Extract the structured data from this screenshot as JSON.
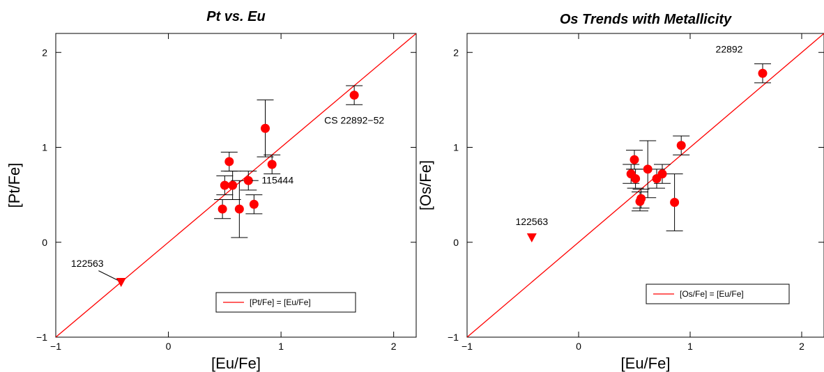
{
  "colors": {
    "marker": "#ff0000",
    "line": "#ff0000",
    "axis": "#000000",
    "errorbar": "#000000"
  },
  "chart_data": [
    {
      "type": "scatter",
      "title": "Pt vs. Eu",
      "xlabel": "[Eu/Fe]",
      "ylabel": "[Pt/Fe]",
      "xlim": [
        -1,
        2.2
      ],
      "ylim": [
        -1,
        2.2
      ],
      "xticks": [
        -1,
        0,
        1,
        2
      ],
      "yticks": [
        -1,
        0,
        1,
        2
      ],
      "tick_labels_x": [
        "−1",
        "0",
        "1",
        "2"
      ],
      "tick_labels_y": [
        "−1",
        "0",
        "1",
        "2"
      ],
      "legend": {
        "label": "[Pt/Fe] = [Eu/Fe]",
        "placement": "bottom-right"
      },
      "reference_line": {
        "slope": 1,
        "intercept": 0
      },
      "points": [
        {
          "x": 0.48,
          "y": 0.35,
          "yerr": 0.1
        },
        {
          "x": 0.5,
          "y": 0.6,
          "yerr": 0.1
        },
        {
          "x": 0.54,
          "y": 0.85,
          "yerr": 0.1
        },
        {
          "x": 0.57,
          "y": 0.6,
          "yerr": 0.15
        },
        {
          "x": 0.63,
          "y": 0.35,
          "yerr": 0.3
        },
        {
          "x": 0.71,
          "y": 0.65,
          "yerr": 0.1
        },
        {
          "x": 0.76,
          "y": 0.4,
          "yerr": 0.1
        },
        {
          "x": 0.86,
          "y": 1.2,
          "yerr": 0.3
        },
        {
          "x": 0.92,
          "y": 0.82,
          "yerr": 0.1
        },
        {
          "x": 1.65,
          "y": 1.55,
          "yerr": 0.1
        }
      ],
      "upper_limits": [
        {
          "x": -0.42,
          "y": -0.42
        }
      ],
      "annotations": [
        {
          "text": "CS 22892−52",
          "x": 1.65,
          "y": 1.25,
          "anchor": "middle"
        },
        {
          "text": "115444",
          "x": 0.97,
          "y": 0.62,
          "anchor": "middle"
        },
        {
          "text": "122563",
          "x": -0.72,
          "y": -0.26,
          "anchor": "middle"
        }
      ],
      "leaders": [
        {
          "x1": 0.74,
          "y1": 0.65,
          "x2": 0.8,
          "y2": 0.65
        },
        {
          "x1": -0.62,
          "y1": -0.3,
          "x2": -0.45,
          "y2": -0.4
        }
      ]
    },
    {
      "type": "scatter",
      "title": "Os Trends with Metallicity",
      "xlabel": "[Eu/Fe]",
      "ylabel": "[Os/Fe]",
      "xlim": [
        -1,
        2.2
      ],
      "ylim": [
        -1,
        2.2
      ],
      "xticks": [
        -1,
        0,
        1,
        2
      ],
      "yticks": [
        -1,
        0,
        1,
        2
      ],
      "tick_labels_x": [
        "−1",
        "0",
        "1",
        "2"
      ],
      "tick_labels_y": [
        "−1",
        "0",
        "1",
        "2"
      ],
      "legend": {
        "label": "[Os/Fe] = [Eu/Fe]",
        "placement": "bottom-right"
      },
      "reference_line": {
        "slope": 1,
        "intercept": 0
      },
      "points": [
        {
          "x": 0.47,
          "y": 0.72,
          "yerr": 0.1
        },
        {
          "x": 0.5,
          "y": 0.87,
          "yerr": 0.1
        },
        {
          "x": 0.51,
          "y": 0.67,
          "yerr": 0.1
        },
        {
          "x": 0.55,
          "y": 0.43,
          "yerr": 0.1
        },
        {
          "x": 0.56,
          "y": 0.46,
          "yerr": 0.1
        },
        {
          "x": 0.62,
          "y": 0.77,
          "yerr": 0.3
        },
        {
          "x": 0.7,
          "y": 0.67,
          "yerr": 0.1
        },
        {
          "x": 0.75,
          "y": 0.72,
          "yerr": 0.1
        },
        {
          "x": 0.86,
          "y": 0.42,
          "yerr": 0.3
        },
        {
          "x": 0.92,
          "y": 1.02,
          "yerr": 0.1
        },
        {
          "x": 1.65,
          "y": 1.78,
          "yerr": 0.1
        }
      ],
      "upper_limits": [
        {
          "x": -0.42,
          "y": 0.05
        }
      ],
      "annotations": [
        {
          "text": "22892",
          "x": 1.35,
          "y": 2.0,
          "anchor": "middle"
        },
        {
          "text": "122563",
          "x": -0.42,
          "y": 0.18,
          "anchor": "middle"
        }
      ],
      "leaders": []
    }
  ]
}
